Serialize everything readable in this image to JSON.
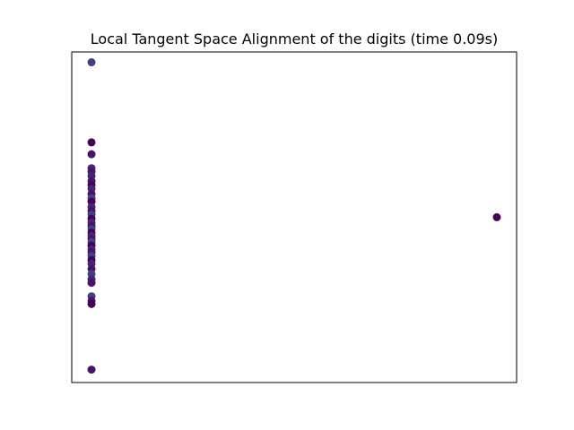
{
  "chart_data": {
    "type": "scatter",
    "title": "Local Tangent Space Alignment of the digits (time 0.09s)",
    "xlabel": "",
    "ylabel": "",
    "xlim": [
      -0.02,
      0.43
    ],
    "ylim": [
      -0.32,
      0.32
    ],
    "grid": false,
    "ticks_visible": false,
    "colormap": "viridis (dark purple range)",
    "colors": {
      "dark_purple": "#440154",
      "purple": "#481467",
      "violet": "#482475",
      "indigo": "#433e85"
    },
    "points": [
      {
        "x": 0.0,
        "y": 0.3,
        "color": "#433e85"
      },
      {
        "x": 0.0,
        "y": 0.145,
        "color": "#440154"
      },
      {
        "x": 0.0,
        "y": 0.122,
        "color": "#481467"
      },
      {
        "x": 0.0,
        "y": 0.095,
        "color": "#482475"
      },
      {
        "x": 0.0,
        "y": 0.088,
        "color": "#481467"
      },
      {
        "x": 0.0,
        "y": 0.08,
        "color": "#482475"
      },
      {
        "x": 0.0,
        "y": 0.07,
        "color": "#481467"
      },
      {
        "x": 0.0,
        "y": 0.062,
        "color": "#440154"
      },
      {
        "x": 0.0,
        "y": 0.055,
        "color": "#482475"
      },
      {
        "x": 0.0,
        "y": 0.045,
        "color": "#481467"
      },
      {
        "x": 0.0,
        "y": 0.037,
        "color": "#433e85"
      },
      {
        "x": 0.0,
        "y": 0.03,
        "color": "#440154"
      },
      {
        "x": 0.0,
        "y": 0.02,
        "color": "#482475"
      },
      {
        "x": 0.0,
        "y": 0.012,
        "color": "#481467"
      },
      {
        "x": 0.0,
        "y": 0.005,
        "color": "#433e85"
      },
      {
        "x": 0.0,
        "y": -0.003,
        "color": "#440154"
      },
      {
        "x": 0.0,
        "y": -0.01,
        "color": "#482475"
      },
      {
        "x": 0.0,
        "y": -0.017,
        "color": "#481467"
      },
      {
        "x": 0.0,
        "y": -0.023,
        "color": "#433e85"
      },
      {
        "x": 0.0,
        "y": -0.03,
        "color": "#440154"
      },
      {
        "x": 0.0,
        "y": -0.036,
        "color": "#482475"
      },
      {
        "x": 0.0,
        "y": -0.042,
        "color": "#481467"
      },
      {
        "x": 0.0,
        "y": -0.048,
        "color": "#433e85"
      },
      {
        "x": 0.0,
        "y": -0.055,
        "color": "#440154"
      },
      {
        "x": 0.0,
        "y": -0.062,
        "color": "#482475"
      },
      {
        "x": 0.0,
        "y": -0.068,
        "color": "#481467"
      },
      {
        "x": 0.0,
        "y": -0.075,
        "color": "#433e85"
      },
      {
        "x": 0.0,
        "y": -0.083,
        "color": "#440154"
      },
      {
        "x": 0.0,
        "y": -0.09,
        "color": "#482475"
      },
      {
        "x": 0.0,
        "y": -0.1,
        "color": "#481467"
      },
      {
        "x": 0.0,
        "y": -0.11,
        "color": "#433e85"
      },
      {
        "x": 0.0,
        "y": -0.12,
        "color": "#482475"
      },
      {
        "x": 0.0,
        "y": -0.127,
        "color": "#481467"
      },
      {
        "x": 0.0,
        "y": -0.153,
        "color": "#433e85"
      },
      {
        "x": 0.0,
        "y": -0.162,
        "color": "#481467"
      },
      {
        "x": 0.0,
        "y": -0.168,
        "color": "#440154"
      },
      {
        "x": 0.0,
        "y": -0.295,
        "color": "#481467"
      },
      {
        "x": 0.41,
        "y": 0.0,
        "color": "#440154"
      }
    ]
  }
}
